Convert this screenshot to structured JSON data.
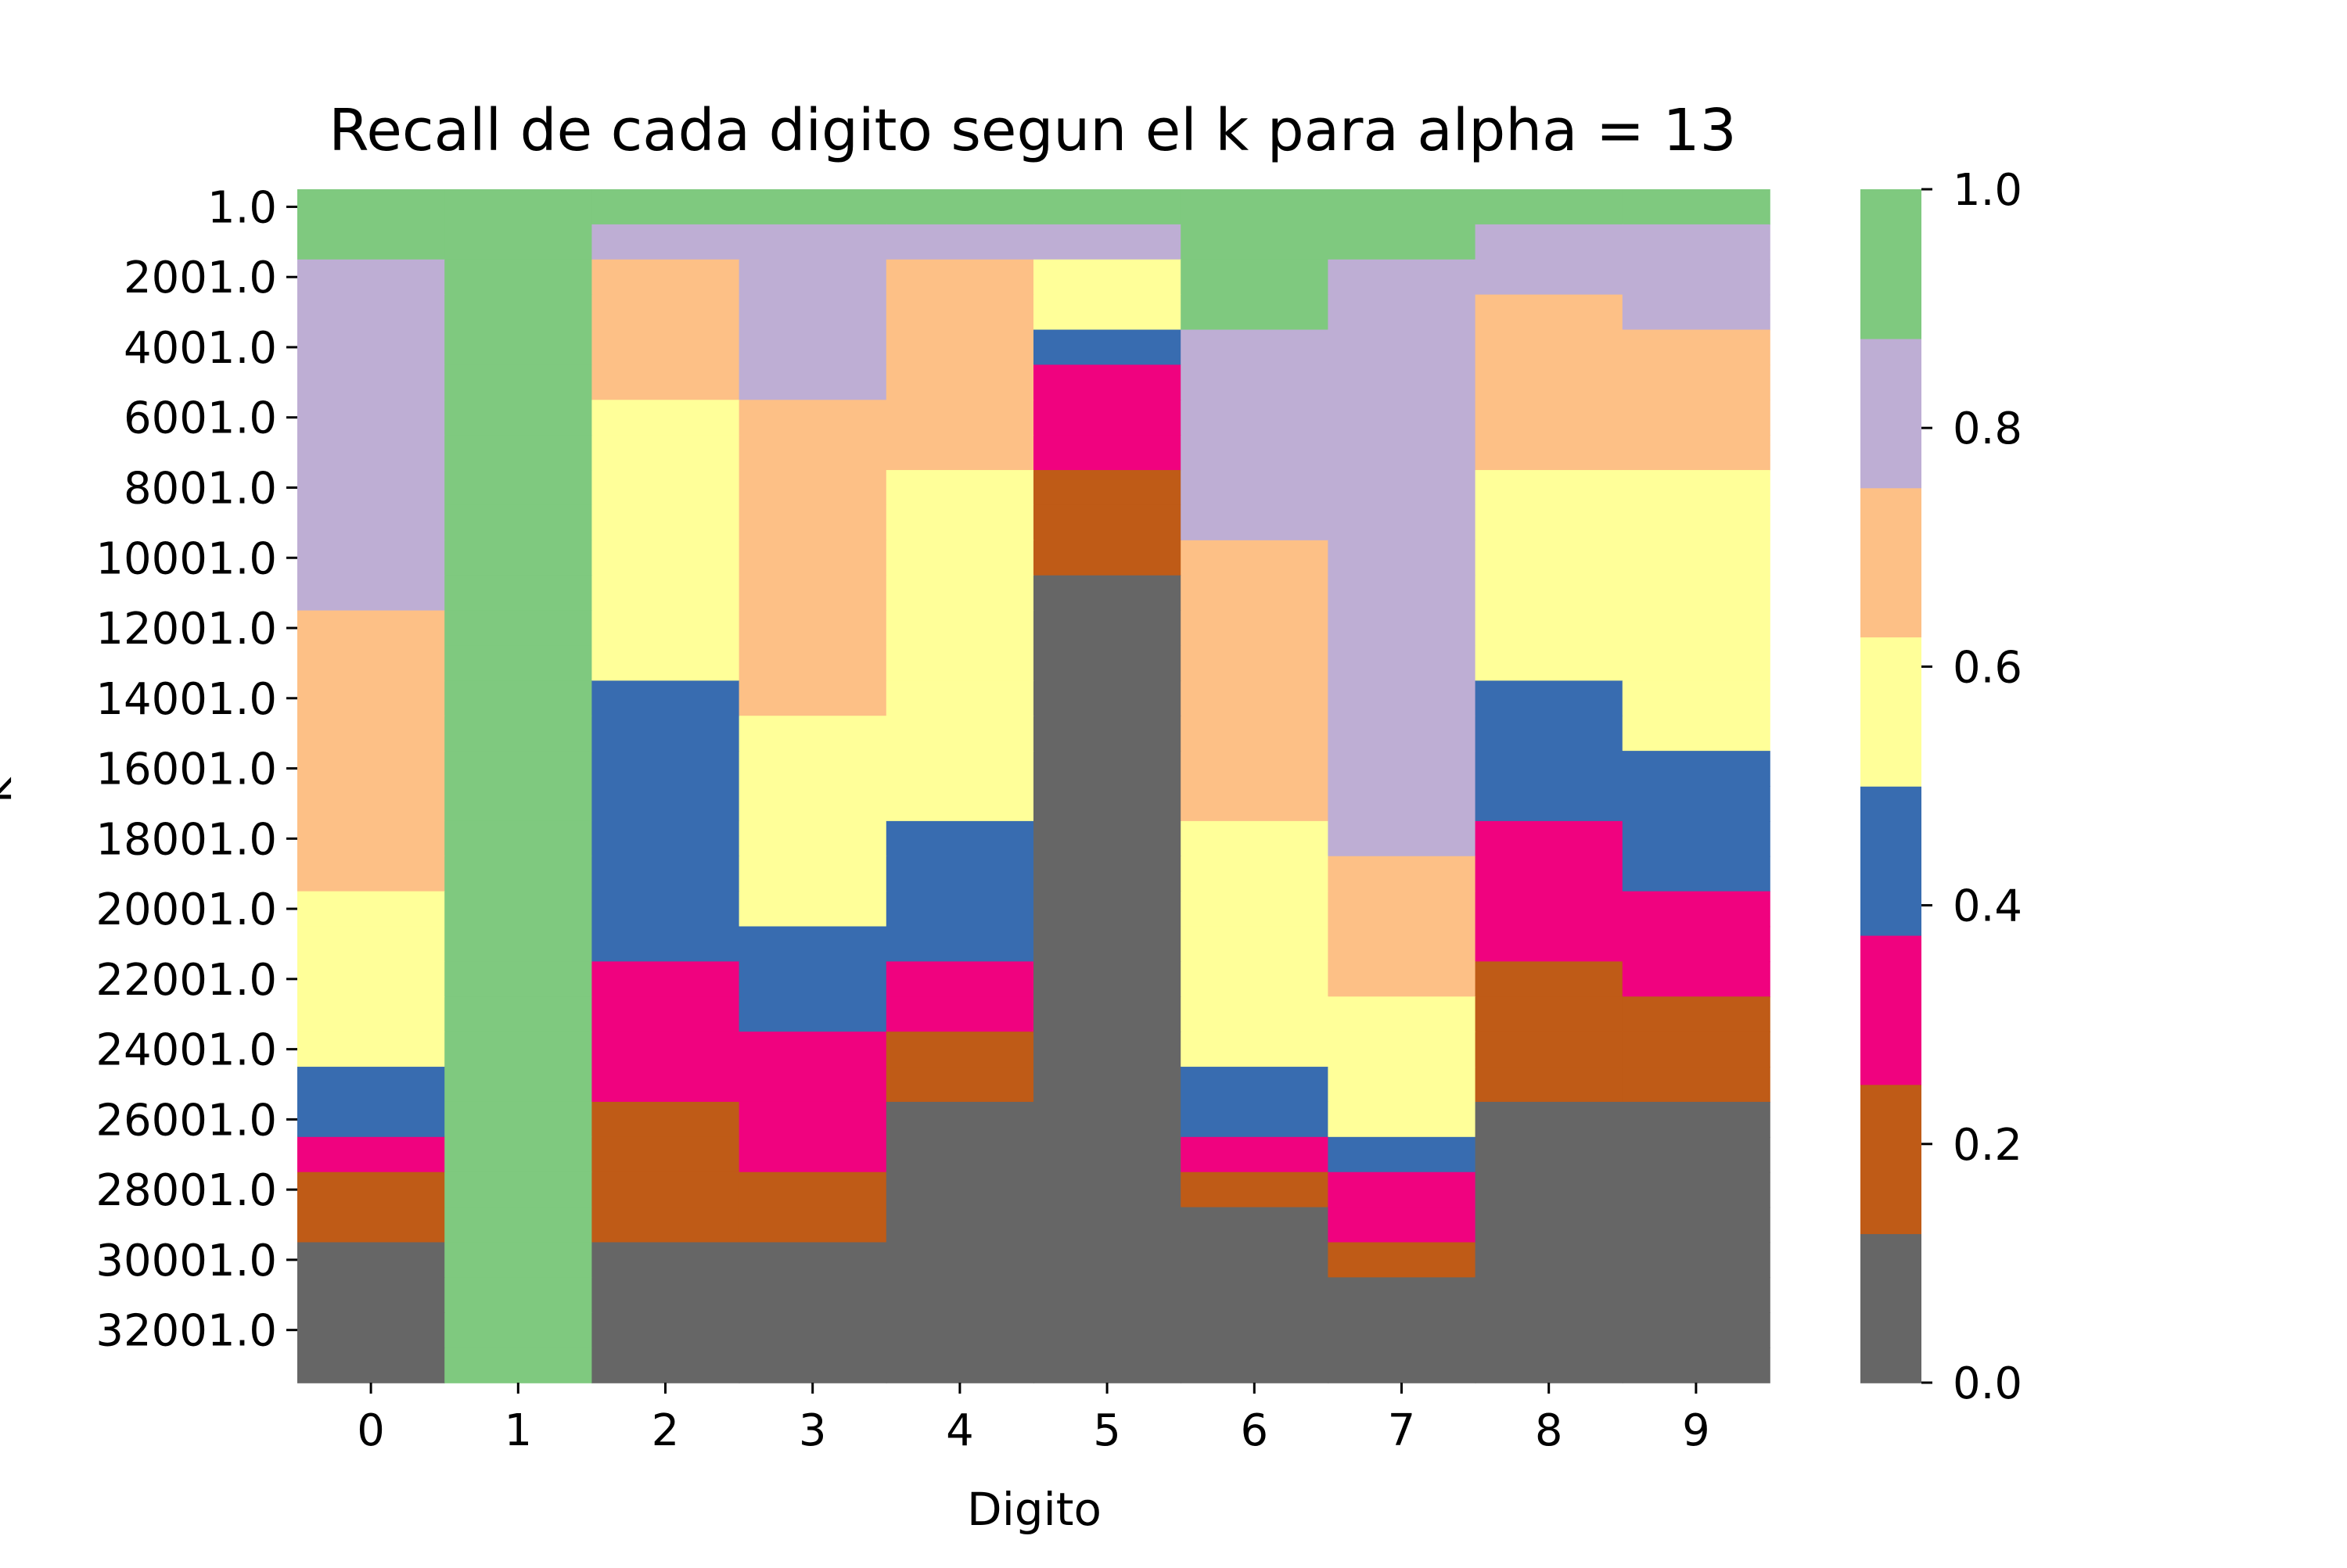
{
  "chart_data": {
    "type": "heatmap",
    "title": "Recall de cada digito segun el k para alpha = 13",
    "xlabel": "Digito",
    "ylabel": "k",
    "x_categories": [
      "0",
      "1",
      "2",
      "3",
      "4",
      "5",
      "6",
      "7",
      "8",
      "9"
    ],
    "y_categories": [
      "1.0",
      "2001.0",
      "4001.0",
      "6001.0",
      "8001.0",
      "10001.0",
      "12001.0",
      "14001.0",
      "16001.0",
      "18001.0",
      "20001.0",
      "22001.0",
      "24001.0",
      "26001.0",
      "28001.0",
      "30001.0",
      "32001.0"
    ],
    "row_count": 34,
    "row_step": 1000,
    "values": [
      [
        0.95,
        0.95,
        0.95,
        0.95,
        0.95,
        0.95,
        0.95,
        0.95,
        0.95,
        0.95
      ],
      [
        0.95,
        0.95,
        0.82,
        0.82,
        0.82,
        0.82,
        0.95,
        0.95,
        0.82,
        0.82
      ],
      [
        0.82,
        0.95,
        0.7,
        0.82,
        0.7,
        0.57,
        0.95,
        0.82,
        0.82,
        0.82
      ],
      [
        0.82,
        0.95,
        0.7,
        0.82,
        0.7,
        0.57,
        0.95,
        0.82,
        0.7,
        0.82
      ],
      [
        0.82,
        0.95,
        0.7,
        0.82,
        0.7,
        0.45,
        0.82,
        0.82,
        0.7,
        0.7
      ],
      [
        0.82,
        0.95,
        0.7,
        0.82,
        0.7,
        0.32,
        0.82,
        0.82,
        0.7,
        0.7
      ],
      [
        0.82,
        0.95,
        0.57,
        0.7,
        0.7,
        0.32,
        0.82,
        0.82,
        0.7,
        0.7
      ],
      [
        0.82,
        0.95,
        0.57,
        0.7,
        0.7,
        0.32,
        0.82,
        0.82,
        0.7,
        0.7
      ],
      [
        0.82,
        0.95,
        0.57,
        0.7,
        0.57,
        0.2,
        0.82,
        0.82,
        0.57,
        0.57
      ],
      [
        0.82,
        0.95,
        0.57,
        0.7,
        0.57,
        0.2,
        0.82,
        0.82,
        0.57,
        0.57
      ],
      [
        0.82,
        0.95,
        0.57,
        0.7,
        0.57,
        0.2,
        0.7,
        0.82,
        0.57,
        0.57
      ],
      [
        0.82,
        0.95,
        0.57,
        0.7,
        0.57,
        0.07,
        0.7,
        0.82,
        0.57,
        0.57
      ],
      [
        0.7,
        0.95,
        0.57,
        0.7,
        0.57,
        0.07,
        0.7,
        0.82,
        0.57,
        0.57
      ],
      [
        0.7,
        0.95,
        0.57,
        0.7,
        0.57,
        0.07,
        0.7,
        0.82,
        0.57,
        0.57
      ],
      [
        0.7,
        0.95,
        0.45,
        0.7,
        0.57,
        0.07,
        0.7,
        0.82,
        0.45,
        0.57
      ],
      [
        0.7,
        0.95,
        0.45,
        0.57,
        0.57,
        0.07,
        0.7,
        0.82,
        0.45,
        0.57
      ],
      [
        0.7,
        0.95,
        0.45,
        0.57,
        0.57,
        0.07,
        0.7,
        0.82,
        0.45,
        0.45
      ],
      [
        0.7,
        0.95,
        0.45,
        0.57,
        0.57,
        0.07,
        0.7,
        0.82,
        0.45,
        0.45
      ],
      [
        0.7,
        0.95,
        0.45,
        0.57,
        0.45,
        0.07,
        0.57,
        0.82,
        0.32,
        0.45
      ],
      [
        0.7,
        0.95,
        0.45,
        0.57,
        0.45,
        0.07,
        0.57,
        0.7,
        0.32,
        0.45
      ],
      [
        0.57,
        0.95,
        0.45,
        0.57,
        0.45,
        0.07,
        0.57,
        0.7,
        0.32,
        0.32
      ],
      [
        0.57,
        0.95,
        0.45,
        0.45,
        0.45,
        0.07,
        0.57,
        0.7,
        0.32,
        0.32
      ],
      [
        0.57,
        0.95,
        0.32,
        0.45,
        0.32,
        0.07,
        0.57,
        0.7,
        0.2,
        0.32
      ],
      [
        0.57,
        0.95,
        0.32,
        0.45,
        0.32,
        0.07,
        0.57,
        0.57,
        0.2,
        0.2
      ],
      [
        0.57,
        0.95,
        0.32,
        0.32,
        0.2,
        0.07,
        0.57,
        0.57,
        0.2,
        0.2
      ],
      [
        0.45,
        0.95,
        0.32,
        0.32,
        0.2,
        0.07,
        0.45,
        0.57,
        0.2,
        0.2
      ],
      [
        0.45,
        0.95,
        0.2,
        0.32,
        0.07,
        0.07,
        0.45,
        0.57,
        0.07,
        0.07
      ],
      [
        0.32,
        0.95,
        0.2,
        0.32,
        0.07,
        0.07,
        0.32,
        0.45,
        0.07,
        0.07
      ],
      [
        0.2,
        0.95,
        0.2,
        0.2,
        0.07,
        0.07,
        0.2,
        0.32,
        0.07,
        0.07
      ],
      [
        0.2,
        0.95,
        0.2,
        0.2,
        0.07,
        0.07,
        0.07,
        0.32,
        0.07,
        0.07
      ],
      [
        0.07,
        0.95,
        0.07,
        0.07,
        0.07,
        0.07,
        0.07,
        0.2,
        0.07,
        0.07
      ],
      [
        0.07,
        0.95,
        0.07,
        0.07,
        0.07,
        0.07,
        0.07,
        0.07,
        0.07,
        0.07
      ],
      [
        0.07,
        0.95,
        0.07,
        0.07,
        0.07,
        0.07,
        0.07,
        0.07,
        0.07,
        0.07
      ],
      [
        0.07,
        0.95,
        0.07,
        0.07,
        0.07,
        0.07,
        0.07,
        0.07,
        0.07,
        0.07
      ]
    ],
    "colorbar": {
      "range": [
        0.0,
        1.0
      ],
      "ticks": [
        "0.0",
        "0.2",
        "0.4",
        "0.6",
        "0.8",
        "1.0"
      ],
      "tick_values": [
        0.0,
        0.2,
        0.4,
        0.6,
        0.8,
        1.0
      ],
      "colormap": "Accent_r",
      "colors": [
        "#666666",
        "#bf5b17",
        "#f0027f",
        "#386cb0",
        "#ffff99",
        "#fdc086",
        "#beaed4",
        "#7fc97f"
      ]
    },
    "grid": false,
    "legend": "colorbar-right"
  }
}
